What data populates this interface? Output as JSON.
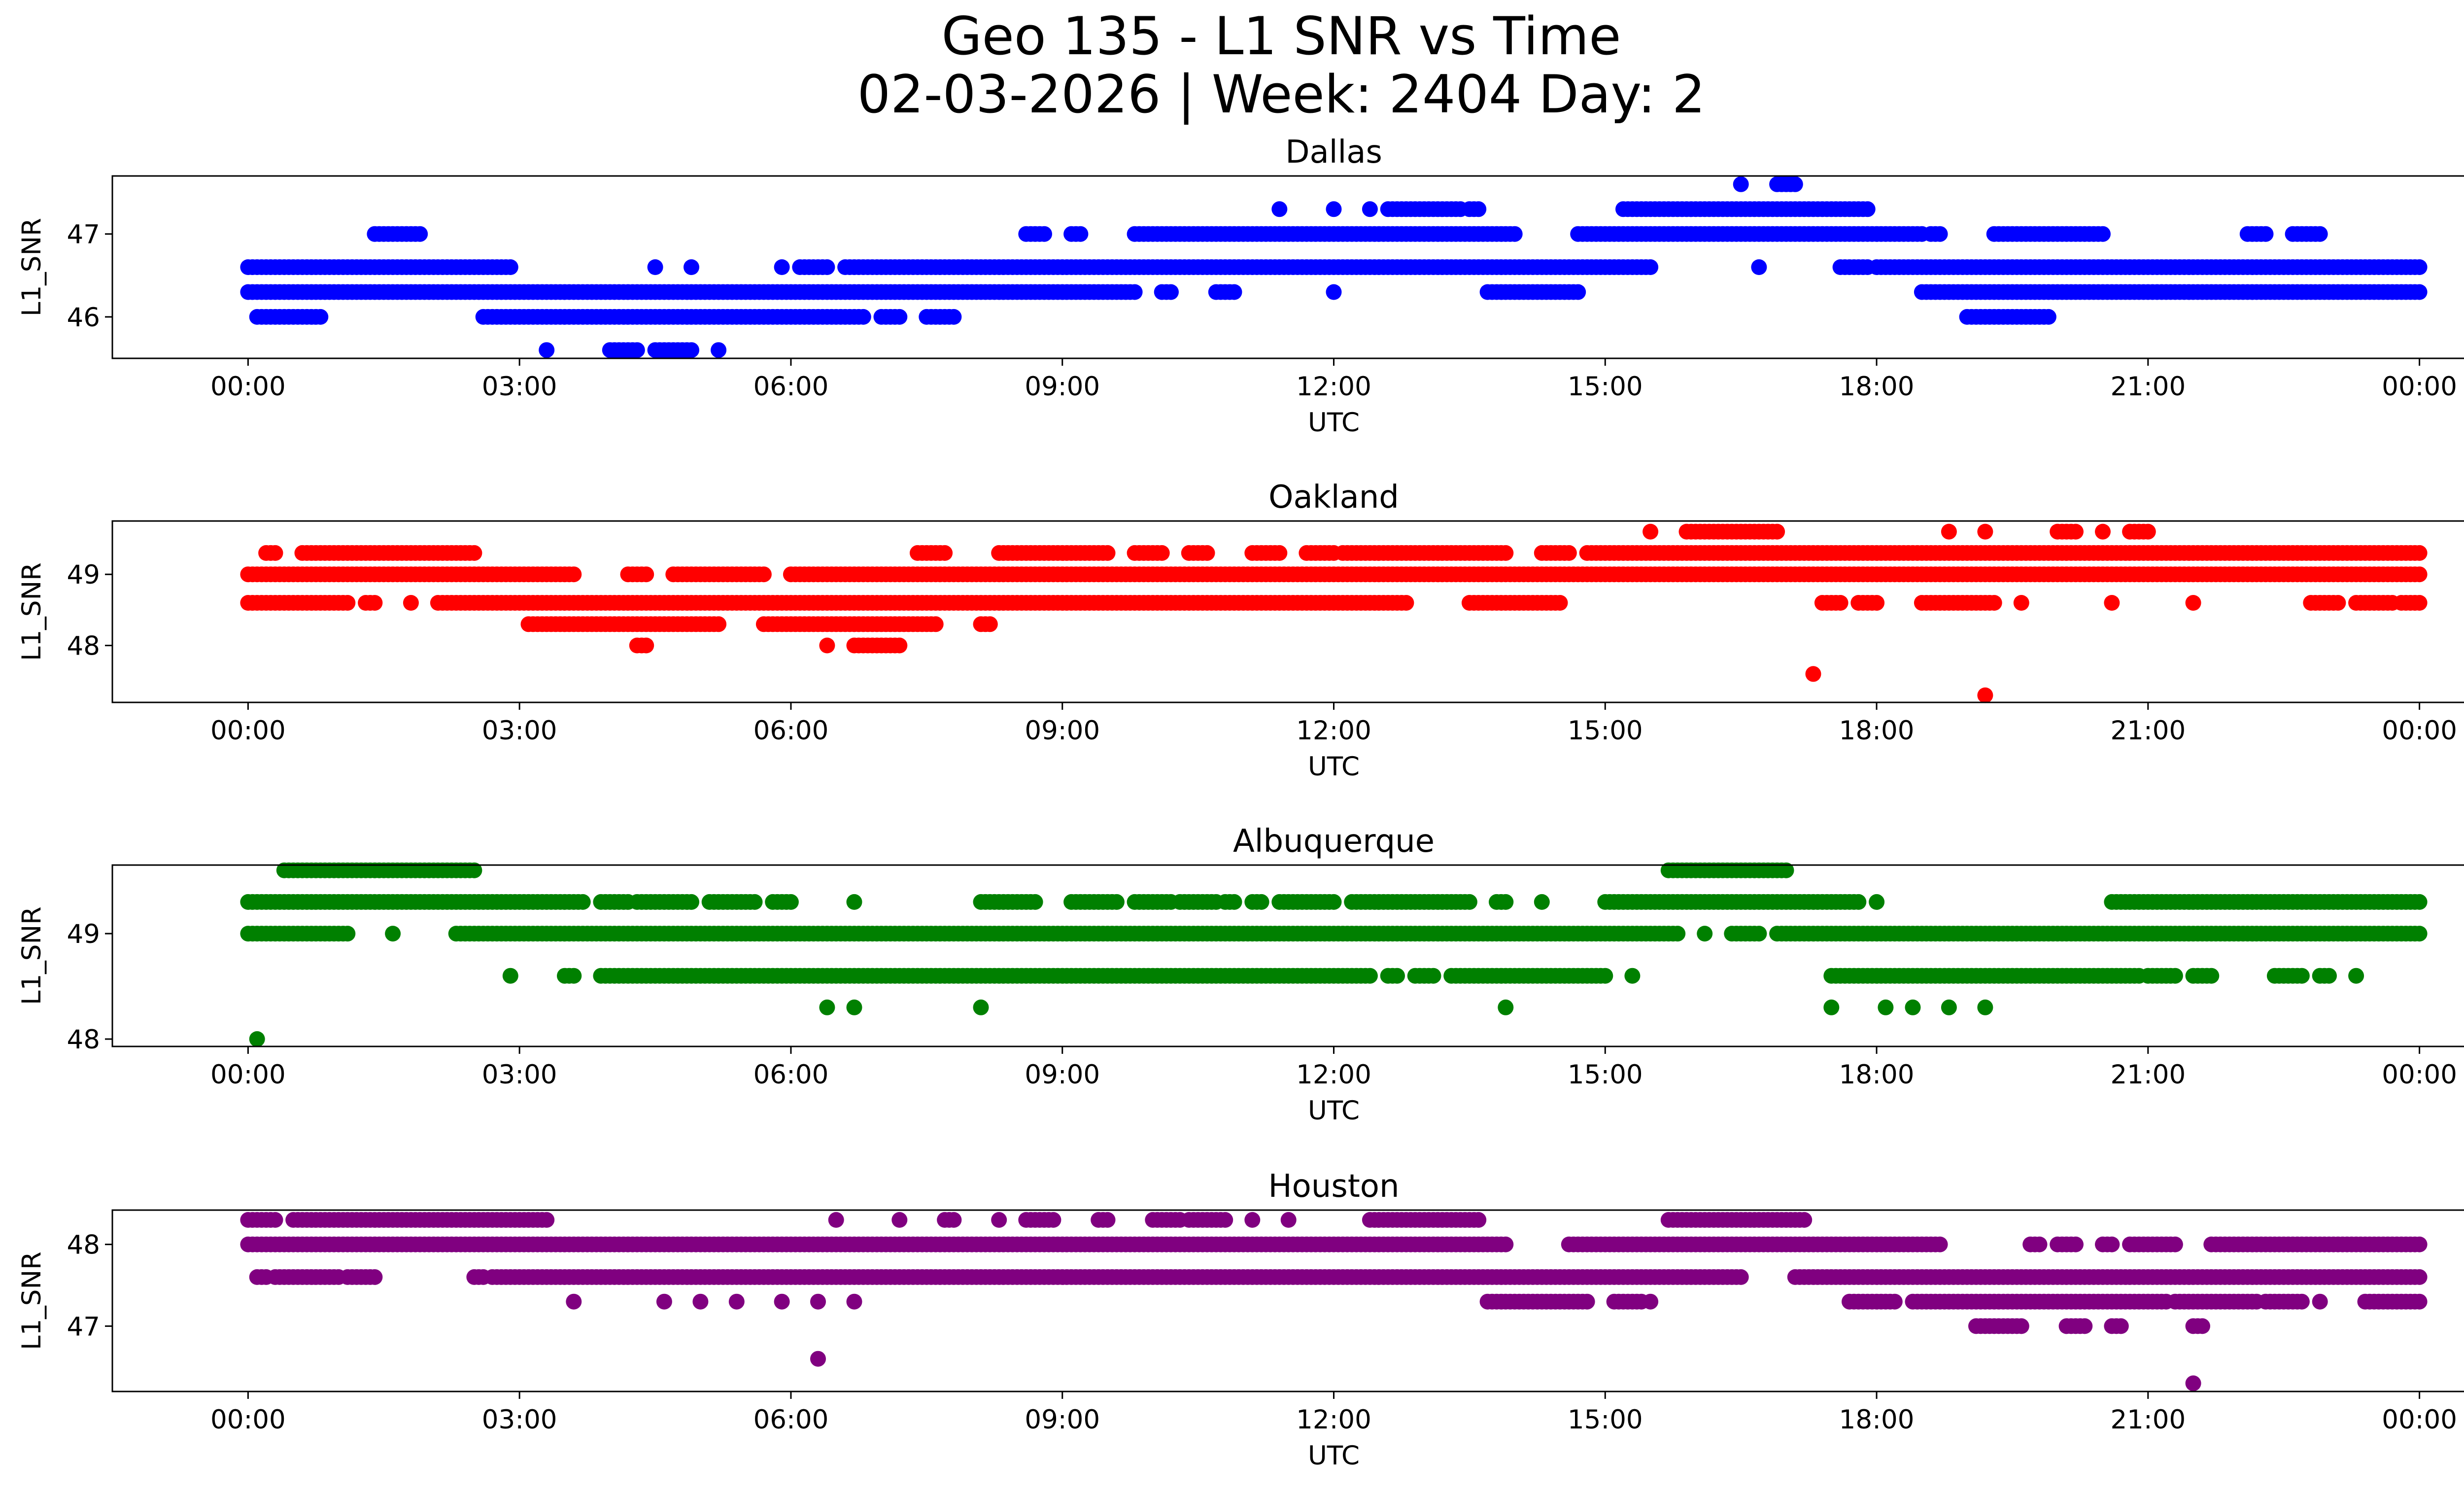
{
  "figure": {
    "title_line1": "Geo 135 - L1 SNR vs Time",
    "title_line2": "02-03-2026 | Week: 2404 Day: 2"
  },
  "chart_data": [
    {
      "type": "scatter",
      "title": "Dallas",
      "color": "#0000ff",
      "xlabel": "UTC",
      "ylabel": "L1_SNR",
      "xlim": [
        -1.5,
        25.5
      ],
      "ylim": [
        45.5,
        47.7
      ],
      "xticks": [
        0,
        3,
        6,
        9,
        12,
        15,
        18,
        21,
        24
      ],
      "xtick_labels": [
        "00:00",
        "03:00",
        "06:00",
        "09:00",
        "12:00",
        "15:00",
        "18:00",
        "21:00",
        "00:00"
      ],
      "yticks": [
        46,
        47
      ],
      "ytick_labels": [
        "46",
        "47"
      ],
      "bands": [
        {
          "y": 46.3,
          "ranges": [
            [
              0,
              9.8
            ],
            [
              10.1,
              10.2
            ],
            [
              10.7,
              10.9
            ],
            [
              12,
              12
            ],
            [
              13.7,
              14.7
            ],
            [
              18.5,
              24
            ]
          ]
        },
        {
          "y": 46.6,
          "ranges": [
            [
              0,
              2.9
            ],
            [
              4.5,
              4.5
            ],
            [
              4.9,
              4.9
            ],
            [
              5.9,
              5.9
            ],
            [
              6.1,
              6.4
            ],
            [
              6.6,
              15.5
            ],
            [
              16.7,
              16.7
            ],
            [
              17.6,
              17.9
            ],
            [
              18,
              24
            ]
          ]
        },
        {
          "y": 46.0,
          "ranges": [
            [
              0.1,
              0.8
            ],
            [
              2.6,
              6.8
            ],
            [
              7.0,
              7.2
            ],
            [
              7.5,
              7.8
            ],
            [
              19.0,
              19.9
            ]
          ]
        },
        {
          "y": 47.0,
          "ranges": [
            [
              1.4,
              1.9
            ],
            [
              8.6,
              8.8
            ],
            [
              9.1,
              9.2
            ],
            [
              9.8,
              14.0
            ],
            [
              14.7,
              18.5
            ],
            [
              18.6,
              18.7
            ],
            [
              19.3,
              20.5
            ],
            [
              22.1,
              22.3
            ],
            [
              22.6,
              22.9
            ]
          ]
        },
        {
          "y": 47.3,
          "ranges": [
            [
              11.4,
              11.4
            ],
            [
              12.0,
              12.0
            ],
            [
              12.4,
              12.4
            ],
            [
              12.6,
              13.4
            ],
            [
              13.5,
              13.6
            ],
            [
              15.2,
              17.9
            ]
          ]
        },
        {
          "y": 45.6,
          "ranges": [
            [
              3.3,
              3.3
            ],
            [
              4.0,
              4.3
            ],
            [
              4.5,
              4.9
            ],
            [
              5.2,
              5.2
            ]
          ]
        },
        {
          "y": 47.6,
          "ranges": [
            [
              16.5,
              16.5
            ],
            [
              16.9,
              17.1
            ]
          ]
        }
      ]
    },
    {
      "type": "scatter",
      "title": "Oakland",
      "color": "#ff0000",
      "xlabel": "UTC",
      "ylabel": "L1_SNR",
      "xlim": [
        -1.5,
        25.5
      ],
      "ylim": [
        47.2,
        49.75
      ],
      "xticks": [
        0,
        3,
        6,
        9,
        12,
        15,
        18,
        21,
        24
      ],
      "xtick_labels": [
        "00:00",
        "03:00",
        "06:00",
        "09:00",
        "12:00",
        "15:00",
        "18:00",
        "21:00",
        "00:00"
      ],
      "yticks": [
        48,
        49
      ],
      "ytick_labels": [
        "48",
        "49"
      ],
      "bands": [
        {
          "y": 49.0,
          "ranges": [
            [
              0,
              3.6
            ],
            [
              4.2,
              4.4
            ],
            [
              4.7,
              5.7
            ],
            [
              6.0,
              24
            ]
          ]
        },
        {
          "y": 48.6,
          "ranges": [
            [
              0,
              1.1
            ],
            [
              1.3,
              1.4
            ],
            [
              1.8,
              1.8
            ],
            [
              2.1,
              12.8
            ],
            [
              13.5,
              14.5
            ],
            [
              17.4,
              17.6
            ],
            [
              17.8,
              18.0
            ],
            [
              18.5,
              19.3
            ],
            [
              19.6,
              19.6
            ],
            [
              20.6,
              20.6
            ],
            [
              21.5,
              21.5
            ],
            [
              22.8,
              23.1
            ],
            [
              23.3,
              23.7
            ],
            [
              23.8,
              24.0
            ]
          ]
        },
        {
          "y": 49.3,
          "ranges": [
            [
              0.2,
              0.3
            ],
            [
              0.6,
              2.5
            ],
            [
              7.4,
              7.7
            ],
            [
              8.3,
              9.5
            ],
            [
              9.8,
              10.1
            ],
            [
              10.4,
              10.6
            ],
            [
              11.1,
              11.4
            ],
            [
              11.7,
              12.0
            ],
            [
              12.1,
              13.9
            ],
            [
              14.3,
              14.6
            ],
            [
              14.8,
              24
            ]
          ]
        },
        {
          "y": 48.3,
          "ranges": [
            [
              3.1,
              5.2
            ],
            [
              5.7,
              7.6
            ],
            [
              8.1,
              8.2
            ]
          ]
        },
        {
          "y": 48.0,
          "ranges": [
            [
              4.3,
              4.4
            ],
            [
              6.4,
              6.4
            ],
            [
              6.7,
              7.2
            ]
          ]
        },
        {
          "y": 49.6,
          "ranges": [
            [
              15.5,
              15.5
            ],
            [
              15.9,
              16.9
            ],
            [
              18.8,
              18.8
            ],
            [
              19.2,
              19.2
            ],
            [
              20.0,
              20.2
            ],
            [
              20.5,
              20.5
            ],
            [
              20.8,
              21.0
            ]
          ]
        },
        {
          "y": 47.6,
          "ranges": [
            [
              17.3,
              17.3
            ]
          ]
        },
        {
          "y": 47.3,
          "ranges": [
            [
              19.2,
              19.2
            ]
          ]
        }
      ]
    },
    {
      "type": "scatter",
      "title": "Albuquerque",
      "color": "#008000",
      "xlabel": "UTC",
      "ylabel": "L1_SNR",
      "xlim": [
        -1.5,
        25.5
      ],
      "ylim": [
        47.93,
        49.65
      ],
      "xticks": [
        0,
        3,
        6,
        9,
        12,
        15,
        18,
        21,
        24
      ],
      "xtick_labels": [
        "00:00",
        "03:00",
        "06:00",
        "09:00",
        "12:00",
        "15:00",
        "18:00",
        "21:00",
        "00:00"
      ],
      "yticks": [
        48,
        49
      ],
      "ytick_labels": [
        "48",
        "49"
      ],
      "bands": [
        {
          "y": 49.3,
          "ranges": [
            [
              0,
              3.7
            ],
            [
              3.9,
              4.2
            ],
            [
              4.3,
              4.9
            ],
            [
              5.1,
              5.6
            ],
            [
              5.8,
              6.0
            ],
            [
              6.7,
              6.7
            ],
            [
              8.1,
              8.7
            ],
            [
              9.1,
              9.6
            ],
            [
              9.8,
              10.2
            ],
            [
              10.3,
              10.7
            ],
            [
              10.8,
              10.9
            ],
            [
              11.1,
              11.2
            ],
            [
              11.4,
              12.0
            ],
            [
              12.2,
              13.5
            ],
            [
              13.8,
              13.9
            ],
            [
              14.3,
              14.3
            ],
            [
              15.0,
              17.8
            ],
            [
              18.0,
              18.0
            ],
            [
              20.6,
              24.0
            ]
          ]
        },
        {
          "y": 49.0,
          "ranges": [
            [
              0,
              1.1
            ],
            [
              1.6,
              1.6
            ],
            [
              2.3,
              15.8
            ],
            [
              16.1,
              16.1
            ],
            [
              16.4,
              16.7
            ],
            [
              16.9,
              24.0
            ]
          ]
        },
        {
          "y": 49.6,
          "ranges": [
            [
              0.4,
              2.5
            ],
            [
              15.7,
              17.0
            ]
          ]
        },
        {
          "y": 48.6,
          "ranges": [
            [
              2.9,
              2.9
            ],
            [
              3.5,
              3.6
            ],
            [
              3.9,
              12.4
            ],
            [
              12.6,
              12.7
            ],
            [
              12.9,
              13.1
            ],
            [
              13.3,
              15.0
            ],
            [
              15.3,
              15.3
            ],
            [
              17.5,
              20.9
            ],
            [
              21.0,
              21.3
            ],
            [
              21.5,
              21.7
            ],
            [
              22.4,
              22.7
            ],
            [
              22.9,
              23.0
            ],
            [
              23.3,
              23.3
            ]
          ]
        },
        {
          "y": 48.3,
          "ranges": [
            [
              6.4,
              6.4
            ],
            [
              6.7,
              6.7
            ],
            [
              8.1,
              8.1
            ],
            [
              13.9,
              13.9
            ],
            [
              17.5,
              17.5
            ],
            [
              18.1,
              18.1
            ],
            [
              18.4,
              18.4
            ],
            [
              18.8,
              18.8
            ],
            [
              19.2,
              19.2
            ]
          ]
        },
        {
          "y": 48.0,
          "ranges": [
            [
              0.1,
              0.1
            ]
          ]
        }
      ]
    },
    {
      "type": "scatter",
      "title": "Houston",
      "color": "#800080",
      "xlabel": "UTC",
      "ylabel": "L1_SNR",
      "xlim": [
        -1.5,
        25.5
      ],
      "ylim": [
        46.2,
        48.42
      ],
      "xticks": [
        0,
        3,
        6,
        9,
        12,
        15,
        18,
        21,
        24
      ],
      "xtick_labels": [
        "00:00",
        "03:00",
        "06:00",
        "09:00",
        "12:00",
        "15:00",
        "18:00",
        "21:00",
        "00:00"
      ],
      "yticks": [
        47,
        48
      ],
      "ytick_labels": [
        "47",
        "48"
      ],
      "bands": [
        {
          "y": 48.0,
          "ranges": [
            [
              0,
              13.9
            ],
            [
              14.6,
              18.7
            ],
            [
              19.7,
              19.8
            ],
            [
              20.0,
              20.2
            ],
            [
              20.5,
              20.6
            ],
            [
              20.8,
              21.3
            ],
            [
              21.7,
              24.0
            ]
          ]
        },
        {
          "y": 48.3,
          "ranges": [
            [
              0,
              0.3
            ],
            [
              0.5,
              3.3
            ],
            [
              6.5,
              6.5
            ],
            [
              7.2,
              7.2
            ],
            [
              7.7,
              7.8
            ],
            [
              8.3,
              8.3
            ],
            [
              8.6,
              8.9
            ],
            [
              9.4,
              9.5
            ],
            [
              10.0,
              10.3
            ],
            [
              10.4,
              10.8
            ],
            [
              11.1,
              11.1
            ],
            [
              11.5,
              11.5
            ],
            [
              12.4,
              13.6
            ],
            [
              15.7,
              17.2
            ]
          ]
        },
        {
          "y": 47.6,
          "ranges": [
            [
              0.1,
              0.2
            ],
            [
              0.3,
              1.0
            ],
            [
              1.1,
              1.4
            ],
            [
              2.5,
              2.6
            ],
            [
              2.7,
              16.5
            ],
            [
              17.1,
              24.0
            ]
          ]
        },
        {
          "y": 47.3,
          "ranges": [
            [
              3.6,
              3.6
            ],
            [
              4.6,
              4.6
            ],
            [
              5.0,
              5.0
            ],
            [
              5.4,
              5.4
            ],
            [
              5.9,
              5.9
            ],
            [
              6.3,
              6.3
            ],
            [
              6.7,
              6.7
            ],
            [
              13.7,
              14.8
            ],
            [
              15.1,
              15.4
            ],
            [
              15.5,
              15.5
            ],
            [
              17.7,
              18.2
            ],
            [
              18.4,
              21.2
            ],
            [
              21.3,
              22.2
            ],
            [
              22.3,
              22.7
            ],
            [
              22.9,
              22.9
            ],
            [
              23.4,
              24.0
            ]
          ]
        },
        {
          "y": 47.0,
          "ranges": [
            [
              19.1,
              19.6
            ],
            [
              20.1,
              20.3
            ],
            [
              20.6,
              20.7
            ],
            [
              21.5,
              21.6
            ]
          ]
        },
        {
          "y": 46.6,
          "ranges": [
            [
              6.3,
              6.3
            ]
          ]
        },
        {
          "y": 46.3,
          "ranges": [
            [
              21.5,
              21.5
            ]
          ]
        }
      ]
    }
  ]
}
